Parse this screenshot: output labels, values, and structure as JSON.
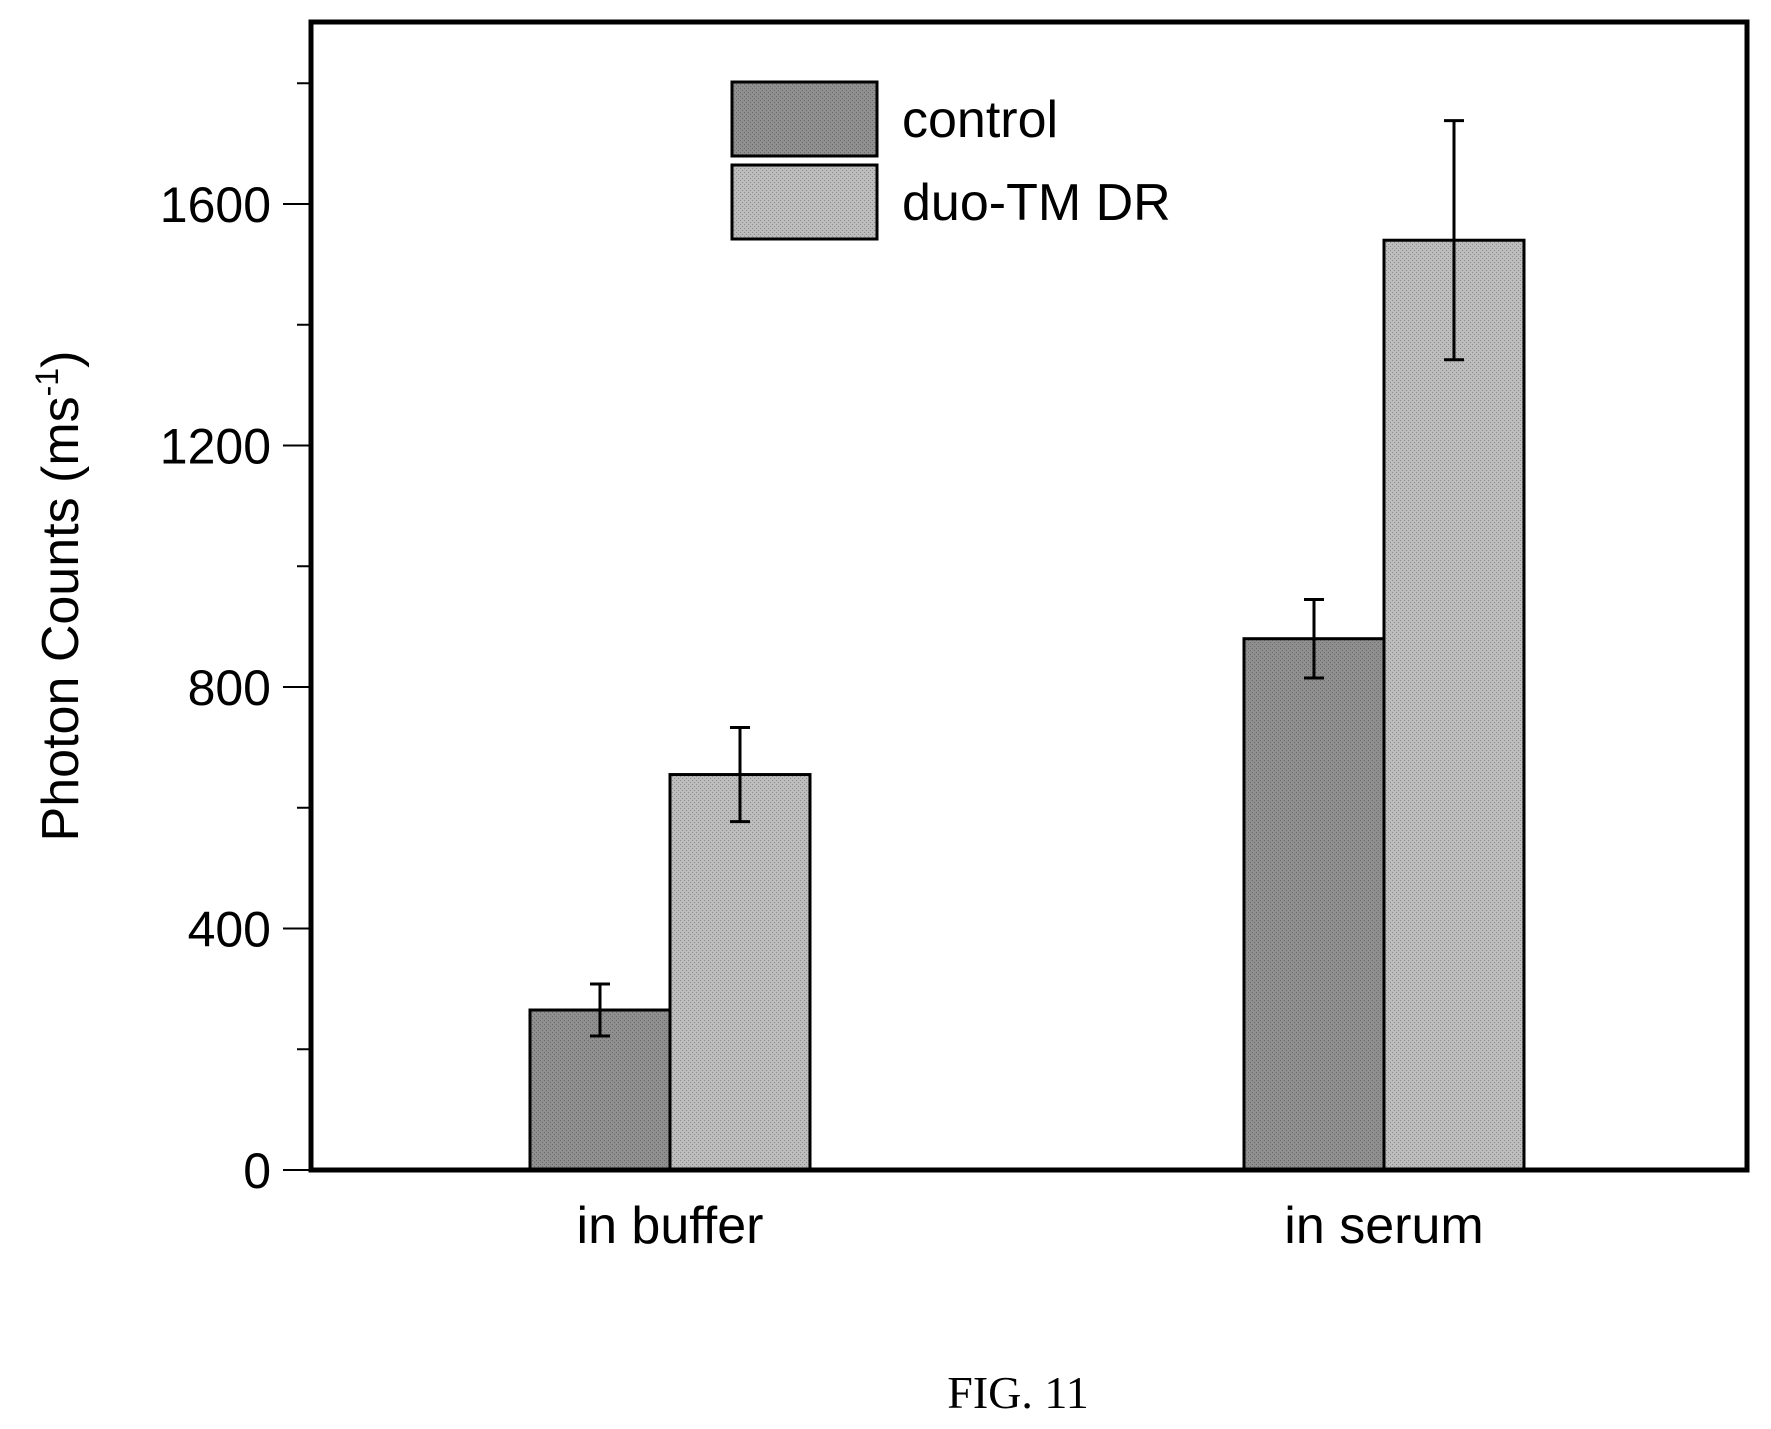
{
  "chart_data": {
    "type": "bar",
    "categories": [
      "in buffer",
      "in serum"
    ],
    "series": [
      {
        "name": "control",
        "values": [
          265,
          880
        ],
        "errors": [
          43,
          65
        ],
        "color": "#8a8a8a"
      },
      {
        "name": "duo-TM DR",
        "values": [
          655,
          1540
        ],
        "errors": [
          78,
          198
        ],
        "color": "#b4b4b4"
      }
    ],
    "ylabel": "Photon Counts (ms",
    "ylabel_sup": "-1",
    "ylabel_close": ")",
    "ylim": [
      0,
      1800
    ],
    "yticks": [
      0,
      400,
      800,
      1200,
      1600
    ],
    "yticks_minor": [
      200,
      600,
      1000,
      1400,
      1800
    ],
    "grid": false,
    "legend_position": "top-center"
  },
  "caption": "FIG. 11"
}
